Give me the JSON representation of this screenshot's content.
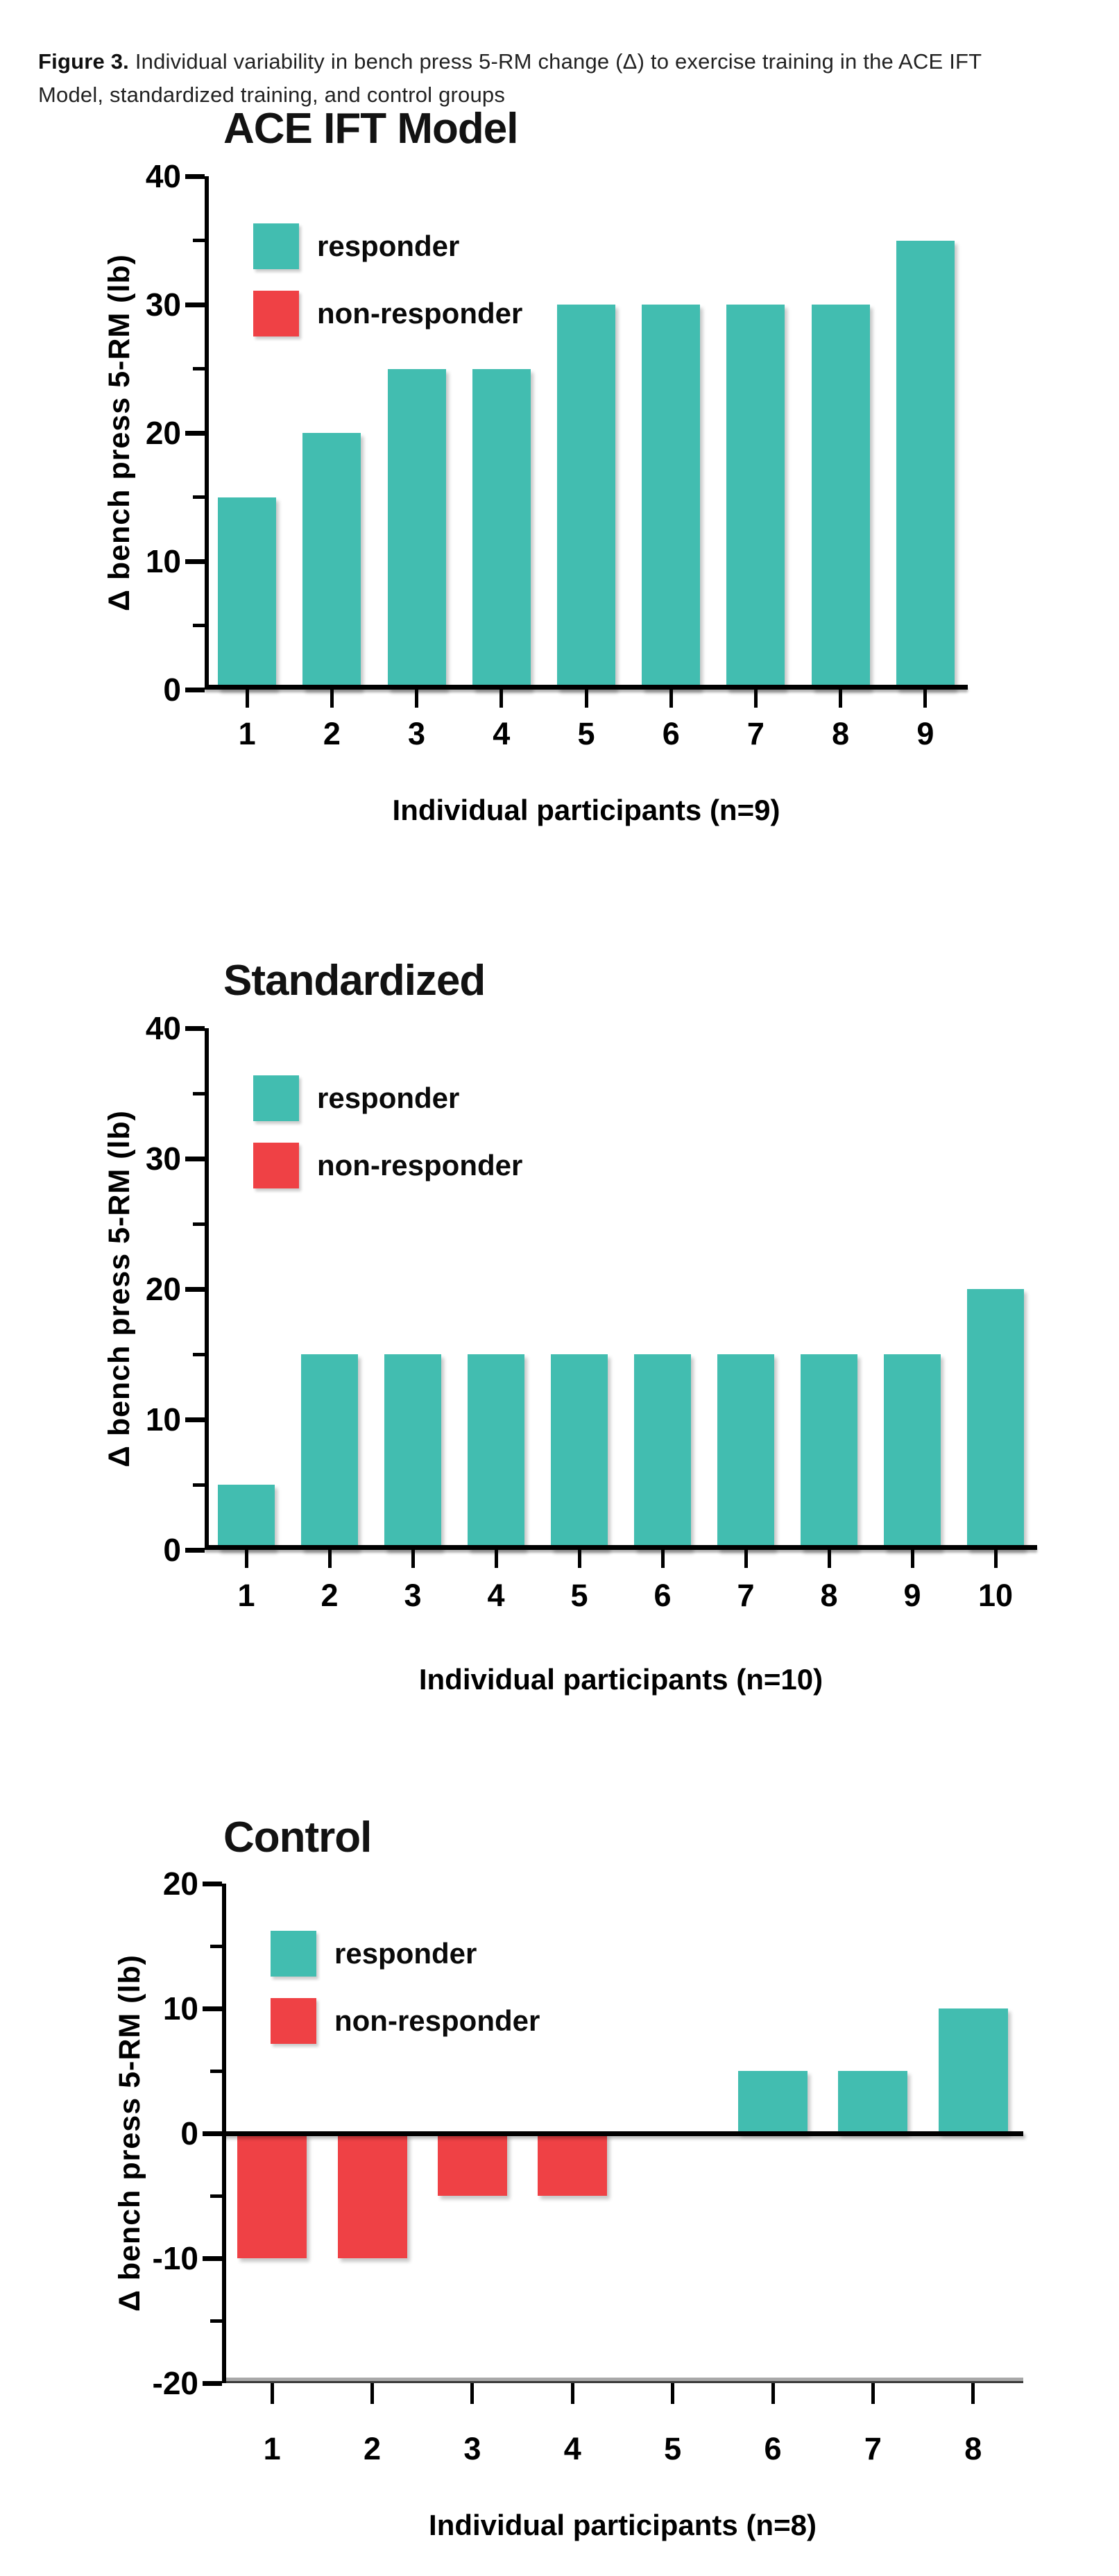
{
  "caption": {
    "label": "Figure 3.",
    "text": " Individual variability in bench press 5-RM change (Δ) to exercise training in the ACE IFT Model, standardized training, and control groups"
  },
  "colors": {
    "responder": "#42BDB0",
    "non_responder": "#EF4145",
    "axis": "#000000",
    "background": "#FFFFFF"
  },
  "legend": [
    {
      "label": "responder",
      "color_key": "responder"
    },
    {
      "label": "non-responder",
      "color_key": "non_responder"
    }
  ],
  "chart_data": [
    {
      "type": "bar",
      "title": "ACE IFT Model",
      "xlabel": "Individual participants (n=9)",
      "ylabel": "Δ bench press 5-RM (lb)",
      "categories": [
        "1",
        "2",
        "3",
        "4",
        "5",
        "6",
        "7",
        "8",
        "9"
      ],
      "values": [
        15,
        20,
        25,
        25,
        30,
        30,
        30,
        30,
        35
      ],
      "ylim": [
        0,
        40
      ],
      "yticks_major": [
        0,
        10,
        20,
        30,
        40
      ],
      "yticks_minor": [
        5,
        15,
        25,
        35
      ],
      "legend_entries": [
        "responder",
        "non-responder"
      ],
      "legend_position": "upper-left",
      "grid": false,
      "color_rule": "positive bars = responder (teal), negative bars = non-responder (red)"
    },
    {
      "type": "bar",
      "title": "Standardized",
      "xlabel": "Individual participants (n=10)",
      "ylabel": "Δ bench press 5-RM (lb)",
      "categories": [
        "1",
        "2",
        "3",
        "4",
        "5",
        "6",
        "7",
        "8",
        "9",
        "10"
      ],
      "values": [
        5,
        15,
        15,
        15,
        15,
        15,
        15,
        15,
        15,
        20
      ],
      "ylim": [
        0,
        40
      ],
      "yticks_major": [
        0,
        10,
        20,
        30,
        40
      ],
      "yticks_minor": [
        5,
        15,
        25,
        35
      ],
      "legend_entries": [
        "responder",
        "non-responder"
      ],
      "legend_position": "upper-left",
      "grid": false,
      "color_rule": "positive bars = responder (teal), negative bars = non-responder (red)"
    },
    {
      "type": "bar",
      "title": "Control",
      "xlabel": "Individual participants (n=8)",
      "ylabel": "Δ bench press 5-RM (lb)",
      "categories": [
        "1",
        "2",
        "3",
        "4",
        "5",
        "6",
        "7",
        "8"
      ],
      "values": [
        -10,
        -10,
        -5,
        -5,
        0,
        5,
        5,
        10
      ],
      "ylim": [
        -20,
        20
      ],
      "yticks_major": [
        -20,
        -10,
        0,
        10,
        20
      ],
      "yticks_minor": [
        -15,
        -5,
        5,
        15
      ],
      "legend_entries": [
        "responder",
        "non-responder"
      ],
      "legend_position": "upper-left",
      "grid": false,
      "color_rule": "positive bars = responder (teal), negative bars = non-responder (red)"
    }
  ]
}
